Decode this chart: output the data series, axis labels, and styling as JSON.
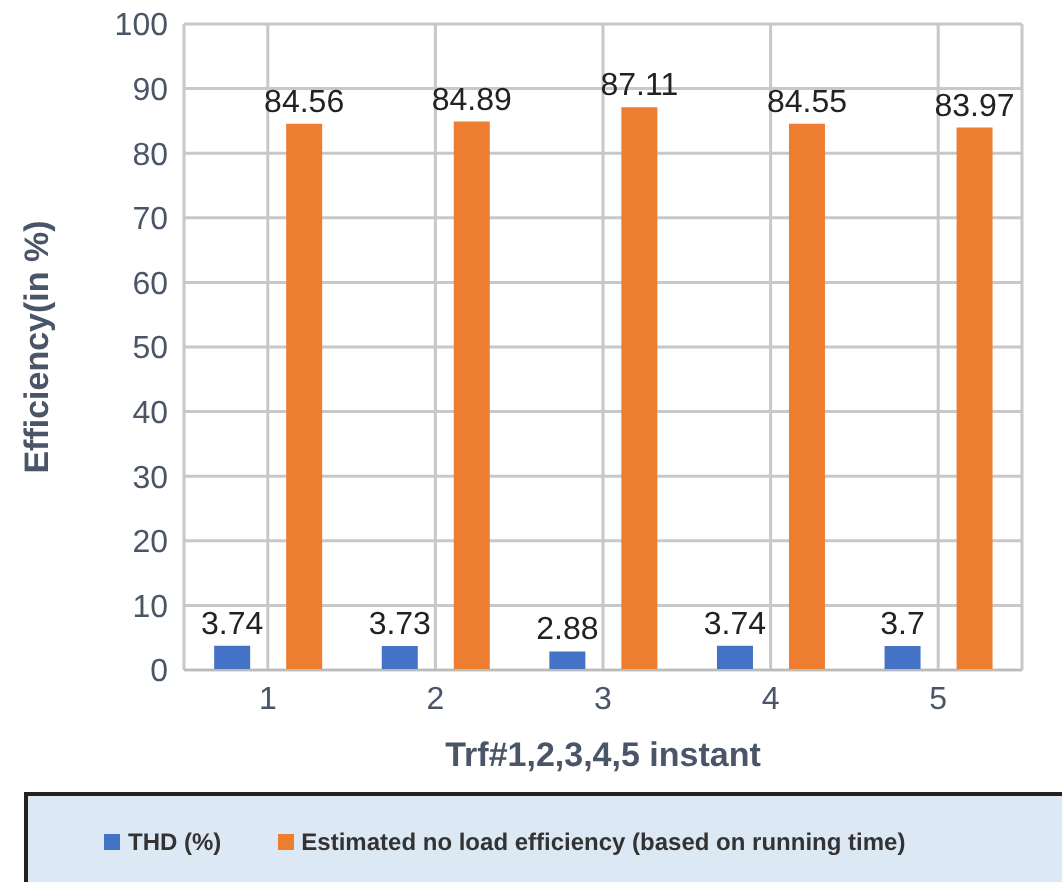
{
  "chart_data": {
    "type": "bar",
    "xlabel": "Trf#1,2,3,4,5 instant",
    "ylabel": "Efficiency(in %)",
    "categories": [
      "1",
      "2",
      "3",
      "4",
      "5"
    ],
    "series": [
      {
        "name": "THD (%)",
        "color": "#4472c4",
        "values": [
          3.74,
          3.73,
          2.88,
          3.74,
          3.7
        ]
      },
      {
        "name": "Estimated no load efficiency (based on running time)",
        "color": "#ed7d31",
        "values": [
          84.56,
          84.89,
          87.11,
          84.55,
          83.97
        ]
      }
    ],
    "ylim": [
      0,
      100
    ],
    "yticks": [
      0,
      10,
      20,
      30,
      40,
      50,
      60,
      70,
      80,
      90,
      100
    ],
    "grid": true,
    "legend": "bottom",
    "data_labels": true
  }
}
